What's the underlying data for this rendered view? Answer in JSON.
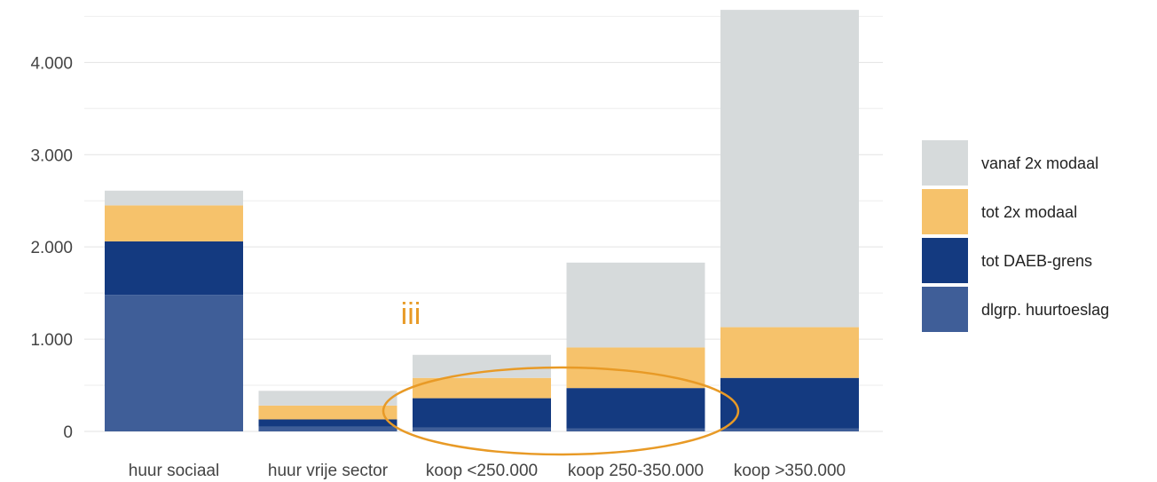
{
  "chart_data": {
    "type": "bar",
    "stacked": true,
    "categories": [
      "huur sociaal",
      "huur vrije sector",
      "koop <250.000",
      "koop 250-350.000",
      "koop >350.000"
    ],
    "series": [
      {
        "name": "dlgrp. huurtoeslag",
        "color": "#3f5e98",
        "values": [
          1480,
          50,
          40,
          30,
          30
        ]
      },
      {
        "name": "tot DAEB-grens",
        "color": "#143a80",
        "values": [
          580,
          80,
          320,
          440,
          550
        ]
      },
      {
        "name": "tot 2x modaal",
        "color": "#f6c26b",
        "values": [
          390,
          150,
          220,
          440,
          550
        ]
      },
      {
        "name": "vanaf 2x modaal",
        "color": "#d6dadb",
        "values": [
          160,
          160,
          250,
          920,
          3440
        ]
      }
    ],
    "y_ticks": [
      "0",
      "1.000",
      "2.000",
      "3.000",
      "4.000"
    ],
    "ylim": [
      0,
      4600
    ],
    "gridlines": true,
    "legend_position": "right",
    "annotation": {
      "text": "iii",
      "color": "#e89a26"
    }
  }
}
